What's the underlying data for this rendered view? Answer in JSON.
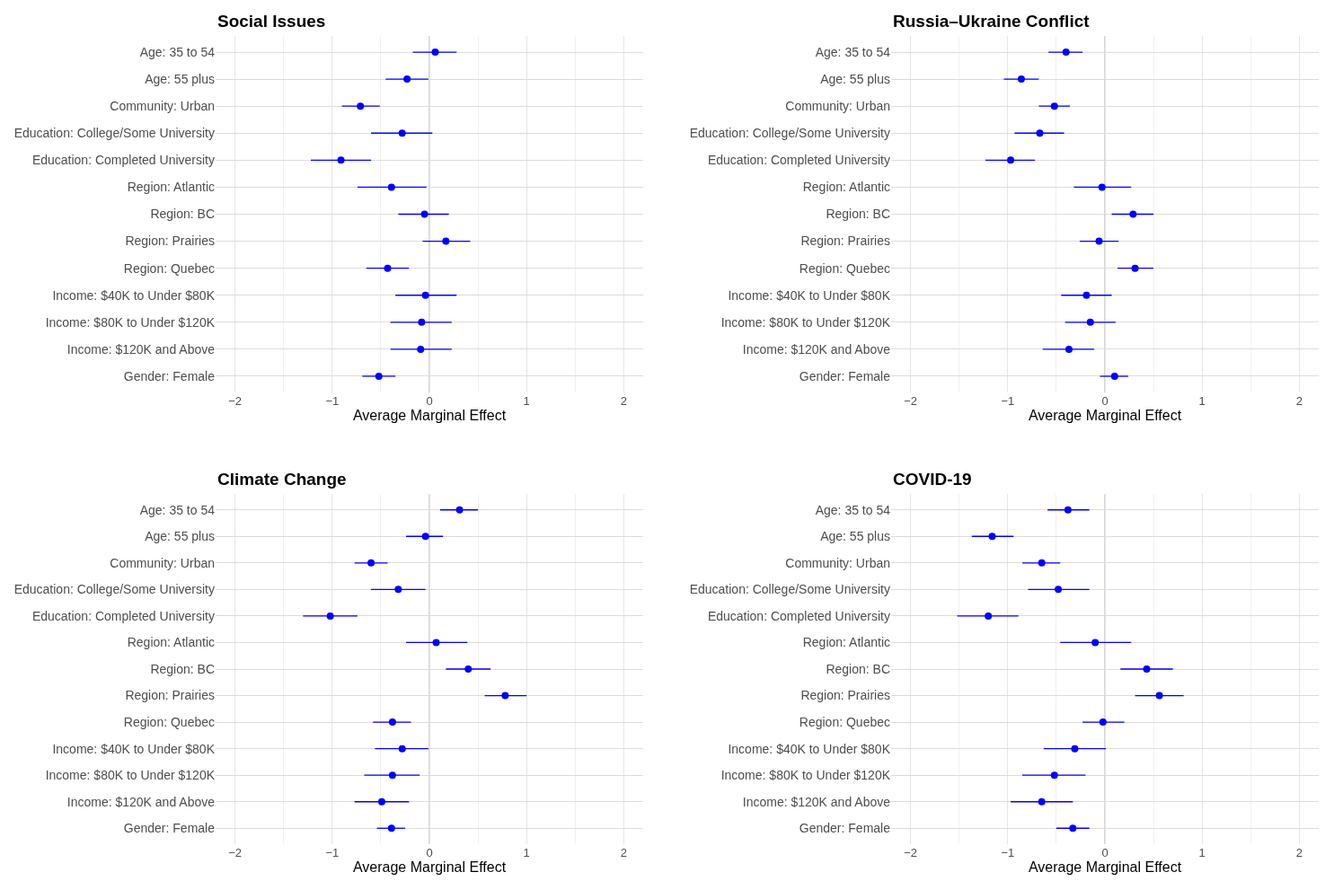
{
  "chart_data": [
    {
      "type": "scatter",
      "orientation": "horizontal",
      "title": "Social Issues",
      "xlabel": "Average Marginal Effect",
      "categories": [
        "Age: 35 to 54",
        "Age: 55 plus",
        "Community: Urban",
        "Education: College/Some University",
        "Education: Completed University",
        "Region: Atlantic",
        "Region: BC",
        "Region: Prairies",
        "Region: Quebec",
        "Income: $40K to Under $80K",
        "Income: $80K to Under $120K",
        "Income: $120K and Above",
        "Gender: Female"
      ],
      "series": [
        {
          "color": "#0000ff",
          "values": [
            0.06,
            -0.23,
            -0.71,
            -0.28,
            -0.91,
            -0.39,
            -0.05,
            0.17,
            -0.43,
            -0.04,
            -0.08,
            -0.09,
            -0.52
          ],
          "errors": [
            [
              -0.17,
              0.28
            ],
            [
              -0.45,
              -0.01
            ],
            [
              -0.9,
              -0.51
            ],
            [
              -0.6,
              0.03
            ],
            [
              -1.22,
              -0.6
            ],
            [
              -0.74,
              -0.03
            ],
            [
              -0.32,
              0.2
            ],
            [
              -0.07,
              0.42
            ],
            [
              -0.65,
              -0.21
            ],
            [
              -0.35,
              0.28
            ],
            [
              -0.4,
              0.23
            ],
            [
              -0.4,
              0.23
            ],
            [
              -0.69,
              -0.35
            ]
          ]
        }
      ],
      "xlim": [
        -2.2,
        2.2
      ],
      "xticks": [
        -2,
        -1,
        0,
        1,
        2
      ],
      "grid": true,
      "marker": "circle",
      "ref_lines": [
        {
          "axis": "x",
          "value": 0,
          "color": "#bdbdbd"
        }
      ]
    },
    {
      "type": "scatter",
      "orientation": "horizontal",
      "title": "Russia–Ukraine Conflict",
      "xlabel": "Average Marginal Effect",
      "categories": [
        "Age: 35 to 54",
        "Age: 55 plus",
        "Community: Urban",
        "Education: College/Some University",
        "Education: Completed University",
        "Region: Atlantic",
        "Region: BC",
        "Region: Prairies",
        "Region: Quebec",
        "Income: $40K to Under $80K",
        "Income: $80K to Under $120K",
        "Income: $120K and Above",
        "Gender: Female"
      ],
      "series": [
        {
          "color": "#0000ff",
          "values": [
            -0.4,
            -0.86,
            -0.52,
            -0.67,
            -0.97,
            -0.03,
            0.29,
            -0.06,
            0.31,
            -0.19,
            -0.15,
            -0.37,
            0.1
          ],
          "errors": [
            [
              -0.58,
              -0.23
            ],
            [
              -1.04,
              -0.68
            ],
            [
              -0.68,
              -0.36
            ],
            [
              -0.93,
              -0.42
            ],
            [
              -1.23,
              -0.72
            ],
            [
              -0.32,
              0.27
            ],
            [
              0.07,
              0.5
            ],
            [
              -0.26,
              0.14
            ],
            [
              0.13,
              0.5
            ],
            [
              -0.45,
              0.07
            ],
            [
              -0.41,
              0.11
            ],
            [
              -0.64,
              -0.11
            ],
            [
              -0.05,
              0.24
            ]
          ]
        }
      ],
      "xlim": [
        -2.2,
        2.2
      ],
      "xticks": [
        -2,
        -1,
        0,
        1,
        2
      ],
      "grid": true,
      "marker": "circle",
      "ref_lines": [
        {
          "axis": "x",
          "value": 0,
          "color": "#bdbdbd"
        }
      ]
    },
    {
      "type": "scatter",
      "orientation": "horizontal",
      "title": "Climate Change",
      "xlabel": "Average Marginal Effect",
      "categories": [
        "Age: 35 to 54",
        "Age: 55 plus",
        "Community: Urban",
        "Education: College/Some University",
        "Education: Completed University",
        "Region: Atlantic",
        "Region: BC",
        "Region: Prairies",
        "Region: Quebec",
        "Income: $40K to Under $80K",
        "Income: $80K to Under $120K",
        "Income: $120K and Above",
        "Gender: Female"
      ],
      "series": [
        {
          "color": "#0000ff",
          "values": [
            0.31,
            -0.04,
            -0.6,
            -0.32,
            -1.02,
            0.07,
            0.4,
            0.78,
            -0.38,
            -0.28,
            -0.38,
            -0.49,
            -0.39
          ],
          "errors": [
            [
              0.11,
              0.5
            ],
            [
              -0.24,
              0.14
            ],
            [
              -0.77,
              -0.43
            ],
            [
              -0.6,
              -0.04
            ],
            [
              -1.3,
              -0.74
            ],
            [
              -0.24,
              0.39
            ],
            [
              0.17,
              0.63
            ],
            [
              0.57,
              1.0
            ],
            [
              -0.58,
              -0.19
            ],
            [
              -0.56,
              -0.01
            ],
            [
              -0.67,
              -0.1
            ],
            [
              -0.77,
              -0.21
            ],
            [
              -0.54,
              -0.25
            ]
          ]
        }
      ],
      "xlim": [
        -2.2,
        2.2
      ],
      "xticks": [
        -2,
        -1,
        0,
        1,
        2
      ],
      "grid": true,
      "marker": "circle",
      "ref_lines": [
        {
          "axis": "x",
          "value": 0,
          "color": "#bdbdbd"
        }
      ]
    },
    {
      "type": "scatter",
      "orientation": "horizontal",
      "title": "COVID-19",
      "xlabel": "Average Marginal Effect",
      "categories": [
        "Age: 35 to 54",
        "Age: 55 plus",
        "Community: Urban",
        "Education: College/Some University",
        "Education: Completed University",
        "Region: Atlantic",
        "Region: BC",
        "Region: Prairies",
        "Region: Quebec",
        "Income: $40K to Under $80K",
        "Income: $80K to Under $120K",
        "Income: $120K and Above",
        "Gender: Female"
      ],
      "series": [
        {
          "color": "#0000ff",
          "values": [
            -0.38,
            -1.16,
            -0.65,
            -0.48,
            -1.2,
            -0.1,
            0.43,
            0.56,
            -0.02,
            -0.31,
            -0.52,
            -0.65,
            -0.33
          ],
          "errors": [
            [
              -0.59,
              -0.16
            ],
            [
              -1.37,
              -0.94
            ],
            [
              -0.85,
              -0.46
            ],
            [
              -0.79,
              -0.16
            ],
            [
              -1.52,
              -0.89
            ],
            [
              -0.46,
              0.27
            ],
            [
              0.16,
              0.7
            ],
            [
              0.31,
              0.81
            ],
            [
              -0.23,
              0.2
            ],
            [
              -0.63,
              0.01
            ],
            [
              -0.85,
              -0.2
            ],
            [
              -0.97,
              -0.33
            ],
            [
              -0.5,
              -0.16
            ]
          ]
        }
      ],
      "xlim": [
        -2.2,
        2.2
      ],
      "xticks": [
        -2,
        -1,
        0,
        1,
        2
      ],
      "grid": true,
      "marker": "circle",
      "ref_lines": [
        {
          "axis": "x",
          "value": 0,
          "color": "#bdbdbd"
        }
      ]
    }
  ]
}
